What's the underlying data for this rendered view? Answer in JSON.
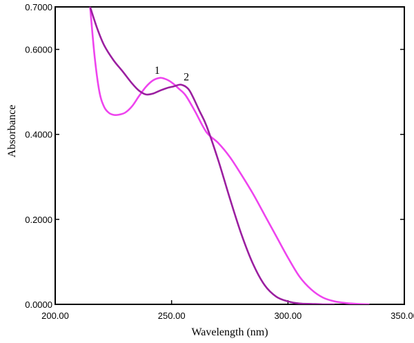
{
  "chart_data": {
    "type": "line",
    "title": "",
    "xlabel": "Wavelength (nm)",
    "ylabel": "Absorbance",
    "xlim": [
      200,
      350
    ],
    "ylim": [
      0,
      0.7
    ],
    "x_ticks": [
      "200.00",
      "250.00",
      "300.00",
      "350.00"
    ],
    "y_ticks": [
      "0.0000",
      "0.2000",
      "0.4000",
      "0.6000",
      "0.7000"
    ],
    "grid": false,
    "series": [
      {
        "name": "1",
        "color": "#ee44ee",
        "x": [
          215,
          217,
          219,
          221,
          223,
          225,
          227,
          230,
          233,
          236,
          239,
          242,
          245,
          247,
          249,
          251,
          253,
          256,
          260,
          265,
          270,
          275,
          280,
          285,
          290,
          295,
          300,
          305,
          310,
          315,
          320,
          325,
          330,
          335
        ],
        "y": [
          0.7,
          0.58,
          0.5,
          0.465,
          0.451,
          0.446,
          0.446,
          0.451,
          0.466,
          0.49,
          0.512,
          0.527,
          0.533,
          0.531,
          0.526,
          0.518,
          0.508,
          0.492,
          0.455,
          0.405,
          0.38,
          0.347,
          0.305,
          0.26,
          0.21,
          0.16,
          0.11,
          0.065,
          0.035,
          0.016,
          0.007,
          0.003,
          0.001,
          0.0
        ]
      },
      {
        "name": "2",
        "color": "#9b1fa0",
        "x": [
          215,
          218,
          221,
          225,
          229,
          233,
          236,
          239,
          242,
          245,
          248,
          251,
          254,
          257,
          259,
          262,
          265,
          270,
          275,
          280,
          285,
          290,
          295,
          300,
          305,
          310,
          315,
          320
        ],
        "y": [
          0.7,
          0.65,
          0.61,
          0.575,
          0.548,
          0.52,
          0.503,
          0.494,
          0.496,
          0.503,
          0.509,
          0.513,
          0.517,
          0.508,
          0.49,
          0.455,
          0.42,
          0.34,
          0.25,
          0.165,
          0.095,
          0.045,
          0.018,
          0.007,
          0.002,
          0.001,
          0.0,
          0.0
        ]
      }
    ]
  }
}
